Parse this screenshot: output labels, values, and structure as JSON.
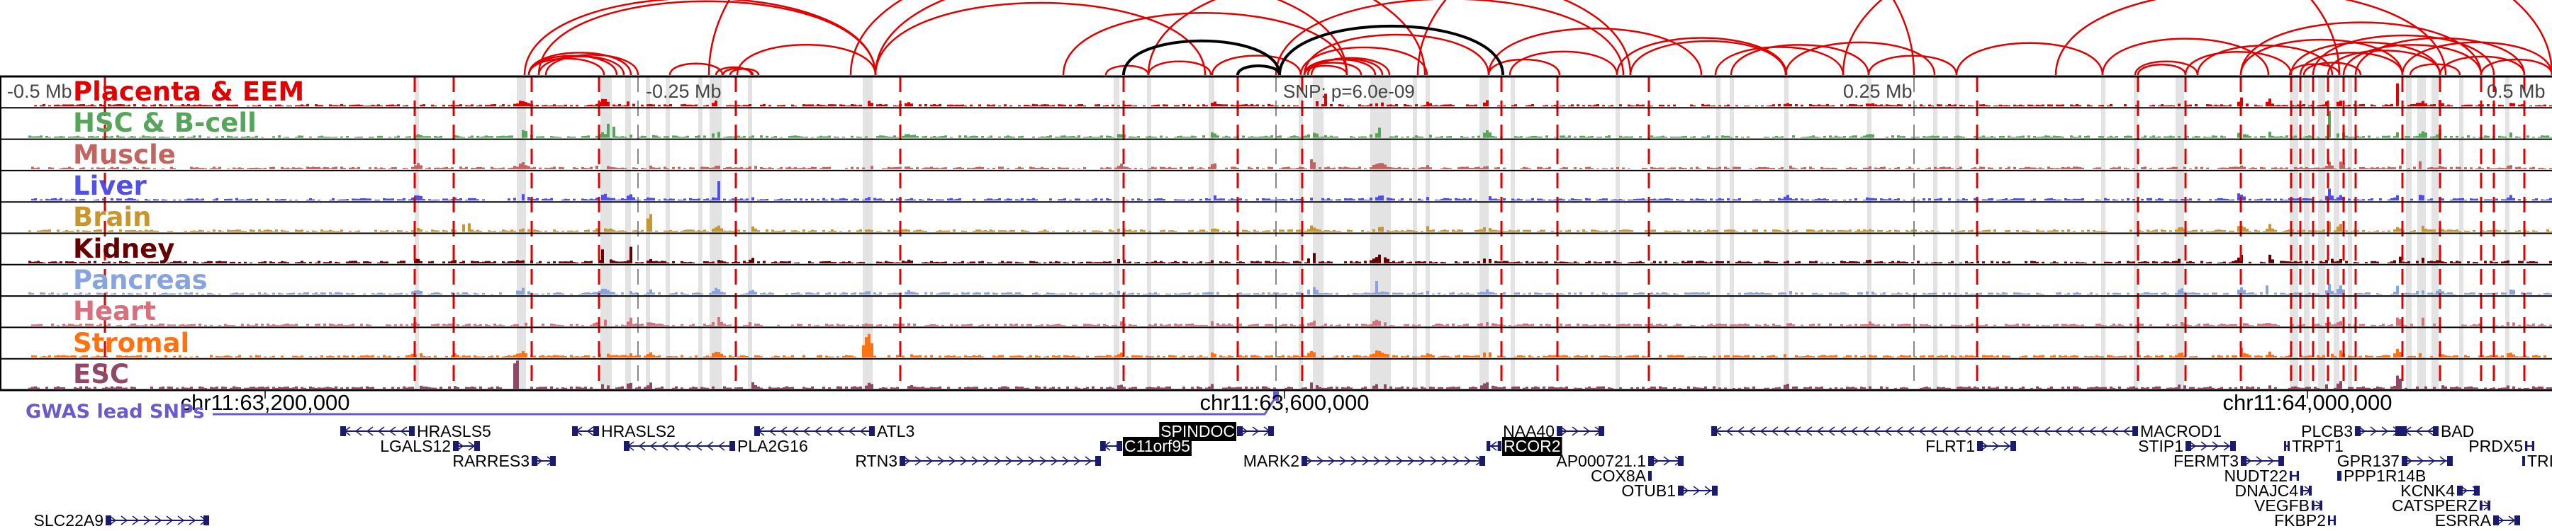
{
  "top_axis": {
    "left": "-0.5 Mb",
    "minus_quarter": "-0.25 Mb",
    "plus_quarter": "0.25 Mb",
    "right": "0.5 Mb",
    "snp": "SNP: p=6.0e-09"
  },
  "tracks": [
    {
      "label": "Placenta & EEM",
      "color": "#e00000"
    },
    {
      "label": "HSC & B-cell",
      "color": "#55a65a"
    },
    {
      "label": "Muscle",
      "color": "#c0655f"
    },
    {
      "label": "Liver",
      "color": "#5050e6"
    },
    {
      "label": "Brain",
      "color": "#c8962e"
    },
    {
      "label": "Kidney",
      "color": "#650000"
    },
    {
      "label": "Pancreas",
      "color": "#87a3e0"
    },
    {
      "label": "Heart",
      "color": "#d76f7d"
    },
    {
      "label": "Stromal",
      "color": "#ff7212"
    },
    {
      "label": "ESC",
      "color": "#8f4966"
    }
  ],
  "coordinates": [
    "chr11:63,200,000",
    "chr11:63,600,000",
    "chr11:64,000,000"
  ],
  "gwas": {
    "label": "GWAS lead SNPs",
    "color": "#6a5acd"
  },
  "colors": {
    "loop": "#e00000",
    "lead_loop": "#000000",
    "gene": "#1a1a6e",
    "band": "#e3e3e3"
  },
  "genes": [
    {
      "name": "HRASLS5",
      "strand": "-",
      "highlighted": false
    },
    {
      "name": "HRASLS2",
      "strand": "-",
      "highlighted": false
    },
    {
      "name": "ATL3",
      "strand": "-",
      "highlighted": false
    },
    {
      "name": "SPINDOC",
      "strand": "+",
      "highlighted": true
    },
    {
      "name": "NAA40",
      "strand": "+",
      "highlighted": false
    },
    {
      "name": "MACROD1",
      "strand": "-",
      "highlighted": false
    },
    {
      "name": "PLCB3",
      "strand": "+",
      "highlighted": false
    },
    {
      "name": "BAD",
      "strand": "-",
      "highlighted": false
    },
    {
      "name": "LGALS12",
      "strand": "+",
      "highlighted": false
    },
    {
      "name": "PLA2G16",
      "strand": "-",
      "highlighted": false
    },
    {
      "name": "C11orf95",
      "strand": "-",
      "highlighted": true
    },
    {
      "name": "RCOR2",
      "strand": "-",
      "highlighted": true
    },
    {
      "name": "FLRT1",
      "strand": "+",
      "highlighted": false
    },
    {
      "name": "STIP1",
      "strand": "+",
      "highlighted": false
    },
    {
      "name": "TRPT1",
      "strand": "-",
      "highlighted": false
    },
    {
      "name": "PRDX5",
      "strand": "+",
      "highlighted": false
    },
    {
      "name": "RARRES3",
      "strand": "+",
      "highlighted": false
    },
    {
      "name": "RTN3",
      "strand": "+",
      "highlighted": false
    },
    {
      "name": "MARK2",
      "strand": "+",
      "highlighted": false
    },
    {
      "name": "AP000721.1",
      "strand": "+",
      "highlighted": false
    },
    {
      "name": "FERMT3",
      "strand": "+",
      "highlighted": false
    },
    {
      "name": "GPR137",
      "strand": "+",
      "highlighted": false
    },
    {
      "name": "TRI",
      "strand": "-",
      "highlighted": false
    },
    {
      "name": "COX8A",
      "strand": "+",
      "highlighted": false
    },
    {
      "name": "NUDT22",
      "strand": "+",
      "highlighted": false
    },
    {
      "name": "PPP1R14B",
      "strand": "-",
      "highlighted": false
    },
    {
      "name": "OTUB1",
      "strand": "+",
      "highlighted": false
    },
    {
      "name": "DNAJC4",
      "strand": "+",
      "highlighted": false
    },
    {
      "name": "KCNK4",
      "strand": "+",
      "highlighted": false
    },
    {
      "name": "VEGFB",
      "strand": "+",
      "highlighted": false
    },
    {
      "name": "CATSPERZ",
      "strand": "+",
      "highlighted": false
    },
    {
      "name": "SLC22A9",
      "strand": "+",
      "highlighted": false
    },
    {
      "name": "FKBP2",
      "strand": "+",
      "highlighted": false
    },
    {
      "name": "ESRRA",
      "strand": "+",
      "highlighted": false
    }
  ]
}
